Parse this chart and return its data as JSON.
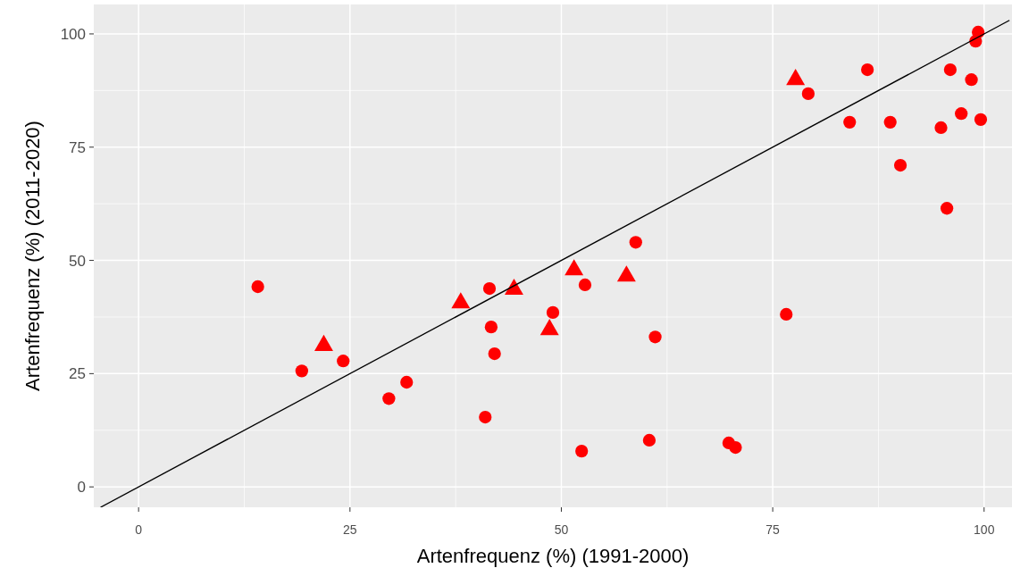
{
  "chart_data": {
    "type": "scatter",
    "xlabel": "Artenfrequenz (%) (1991-2000)",
    "ylabel": "Artenfrequenz (%) (2011-2020)",
    "xlim": [
      -5.3,
      103.3
    ],
    "ylim": [
      -4.5,
      106.5
    ],
    "xticks": [
      0,
      25,
      50,
      75,
      100
    ],
    "yticks": [
      0,
      25,
      50,
      75,
      100
    ],
    "grid": true,
    "series": [
      {
        "marker": "circle",
        "color": "#ff0000",
        "x": [
          14.1,
          19.3,
          24.2,
          29.6,
          31.7,
          41.5,
          41.7,
          42.1,
          41.0,
          49.0,
          52.8,
          52.4,
          58.8,
          61.1,
          60.4,
          69.8,
          70.6,
          76.6,
          79.2,
          84.1,
          86.2,
          88.9,
          90.1,
          94.9,
          95.6,
          96.0,
          97.3,
          98.5,
          99.0,
          99.3,
          99.6
        ],
        "values": [
          44.2,
          25.6,
          27.8,
          19.5,
          23.1,
          43.8,
          35.3,
          29.4,
          15.4,
          38.5,
          44.6,
          7.9,
          54.0,
          33.1,
          10.3,
          9.7,
          8.7,
          38.1,
          86.8,
          80.5,
          92.1,
          80.5,
          71.0,
          79.3,
          61.5,
          92.1,
          82.4,
          89.9,
          98.4,
          100.4,
          81.1
        ]
      },
      {
        "marker": "triangle",
        "color": "#ff0000",
        "x": [
          21.9,
          38.1,
          44.4,
          48.6,
          51.5,
          57.7,
          77.7
        ],
        "values": [
          31.2,
          40.6,
          43.6,
          34.7,
          47.9,
          46.5,
          89.9
        ]
      },
      {
        "type": "line",
        "marker": "none",
        "color": "#000000",
        "x": [
          -4.5,
          103.0
        ],
        "values": [
          -4.5,
          103.0
        ]
      }
    ]
  }
}
